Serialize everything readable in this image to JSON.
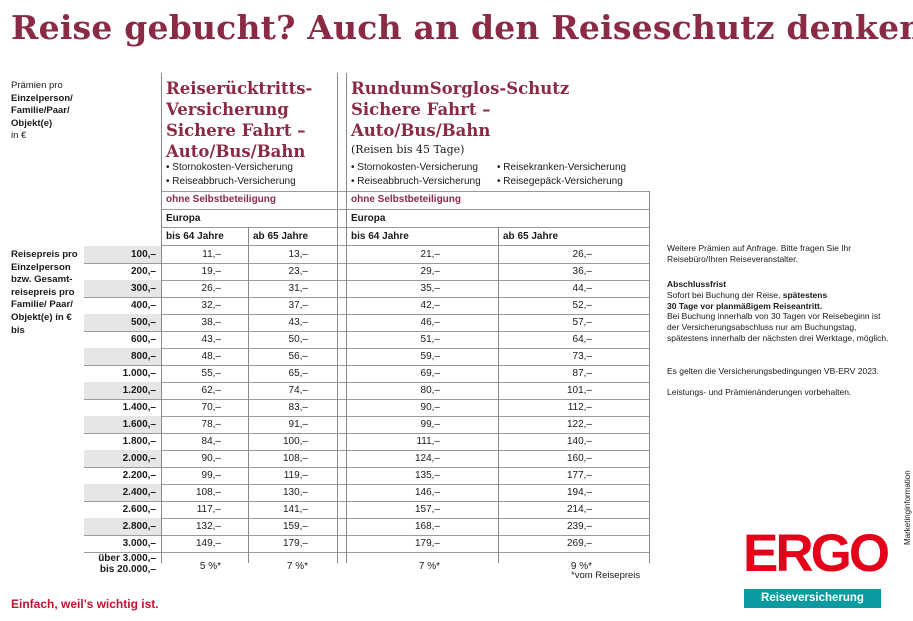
{
  "title": "Reise gebucht? Auch an den Reiseschutz denken!",
  "premium_label": {
    "line1": "Prämien pro",
    "line2": "Einzelperson/",
    "line3": "Familie/Paar/",
    "line4": "Objekt(e)",
    "line5": "in €"
  },
  "product1": {
    "title": "Reiserücktritts-\nVersicherung\nSichere Fahrt –\nAuto/Bus/Bahn",
    "bullets": [
      "• Stornokosten-Versicherung",
      "• Reiseabbruch-Versicherung"
    ],
    "deductible": "ohne Selbstbeteiligung",
    "region": "Europa",
    "col_young": "bis 64 Jahre",
    "col_old": "ab 65 Jahre"
  },
  "product2": {
    "title": "RundumSorglos-Schutz\nSichere Fahrt –\nAuto/Bus/Bahn",
    "subtitle": "(Reisen bis 45 Tage)",
    "bullets_left": [
      "• Stornokosten-Versicherung",
      "• Reiseabbruch-Versicherung"
    ],
    "bullets_right": [
      "• Reisekranken-Versicherung",
      "• Reisegepäck-Versicherung"
    ],
    "deductible": "ohne Selbstbeteiligung",
    "region": "Europa",
    "col_young": "bis 64 Jahre",
    "col_old": "ab 65 Jahre"
  },
  "row_label": "Reisepreis pro Einzel­person bzw. Gesamt­reisepreis pro Familie/ Paar/ Objekt(e) in € bis",
  "rows": [
    {
      "price": "100,–",
      "p1_young": "11,–",
      "p1_old": "13,–",
      "p2_young": "21,–",
      "p2_old": "26,–"
    },
    {
      "price": "200,–",
      "p1_young": "19,–",
      "p1_old": "23,–",
      "p2_young": "29,–",
      "p2_old": "36,–"
    },
    {
      "price": "300,–",
      "p1_young": "26,–",
      "p1_old": "31,–",
      "p2_young": "35,–",
      "p2_old": "44,–"
    },
    {
      "price": "400,–",
      "p1_young": "32,–",
      "p1_old": "37,–",
      "p2_young": "42,–",
      "p2_old": "52,–"
    },
    {
      "price": "500,–",
      "p1_young": "38,–",
      "p1_old": "43,–",
      "p2_young": "46,–",
      "p2_old": "57,–"
    },
    {
      "price": "600,–",
      "p1_young": "43,–",
      "p1_old": "50,–",
      "p2_young": "51,–",
      "p2_old": "64,–"
    },
    {
      "price": "800,–",
      "p1_young": "48,–",
      "p1_old": "56,–",
      "p2_young": "59,–",
      "p2_old": "73,–"
    },
    {
      "price": "1.000,–",
      "p1_young": "55,–",
      "p1_old": "65,–",
      "p2_young": "69,–",
      "p2_old": "87,–"
    },
    {
      "price": "1.200,–",
      "p1_young": "62,–",
      "p1_old": "74,–",
      "p2_young": "80,–",
      "p2_old": "101,–"
    },
    {
      "price": "1.400,–",
      "p1_young": "70,–",
      "p1_old": "83,–",
      "p2_young": "90,–",
      "p2_old": "112,–"
    },
    {
      "price": "1.600,–",
      "p1_young": "78,–",
      "p1_old": "91,–",
      "p2_young": "99,–",
      "p2_old": "122,–"
    },
    {
      "price": "1.800,–",
      "p1_young": "84,–",
      "p1_old": "100,–",
      "p2_young": "111,–",
      "p2_old": "140,–"
    },
    {
      "price": "2.000,–",
      "p1_young": "90,–",
      "p1_old": "108,–",
      "p2_young": "124,–",
      "p2_old": "160,–"
    },
    {
      "price": "2.200,–",
      "p1_young": "99,–",
      "p1_old": "119,–",
      "p2_young": "135,–",
      "p2_old": "177,–"
    },
    {
      "price": "2.400,–",
      "p1_young": "108,–",
      "p1_old": "130,–",
      "p2_young": "146,–",
      "p2_old": "194,–"
    },
    {
      "price": "2.600,–",
      "p1_young": "117,–",
      "p1_old": "141,–",
      "p2_young": "157,–",
      "p2_old": "214,–"
    },
    {
      "price": "2.800,–",
      "p1_young": "132,–",
      "p1_old": "159,–",
      "p2_young": "168,–",
      "p2_old": "239,–"
    },
    {
      "price": "3.000,–",
      "p1_young": "149,–",
      "p1_old": "179,–",
      "p2_young": "179,–",
      "p2_old": "269,–"
    }
  ],
  "last_row": {
    "price_line1": "über 3.000,–",
    "price_line2": "bis 20.000,–",
    "p1_young": "5 %*",
    "p1_old": "7 %*",
    "p2_young": "7 %*",
    "p2_old": "9 %*"
  },
  "side": {
    "more_premiums": "Weitere Prämien auf Anfrage. Bitte fragen Sie Ihr Reisebüro/Ihren Reiseveranstalter.",
    "deadline_title": "Abschlussfrist",
    "deadline_text1": "Sofort bei Buchung der Reise, ",
    "deadline_bold1": "spätestens",
    "deadline_bold2": "30 Tage vor planmäßigem Reiseantritt.",
    "deadline_text2": "Bei Buchung innerhalb von 30 Tagen vor Reise­beginn ist der Versicherungsabschluss nur am Buchungstag, spätestens innerhalb der nächsten drei Werktage, möglich.",
    "conditions": "Es gelten die Versicherungsbedingungen VB-ERV 2023.",
    "reservation": "Leistungs- und Prämienänderungen vorbehalten."
  },
  "footnote": "*vom Reisepreis",
  "slogan": "Einfach, weil’s wichtig ist.",
  "brand": {
    "logo": "ERGO",
    "tagline": "Reiseversicherung",
    "marketing": "Marketinginformation"
  },
  "colors": {
    "accent": "#8a2a45",
    "ergo_red": "#e4001b",
    "ergo_teal": "#0a9aa0",
    "slogan_red": "#c8102e",
    "row_shade": "#e6e6e6"
  }
}
